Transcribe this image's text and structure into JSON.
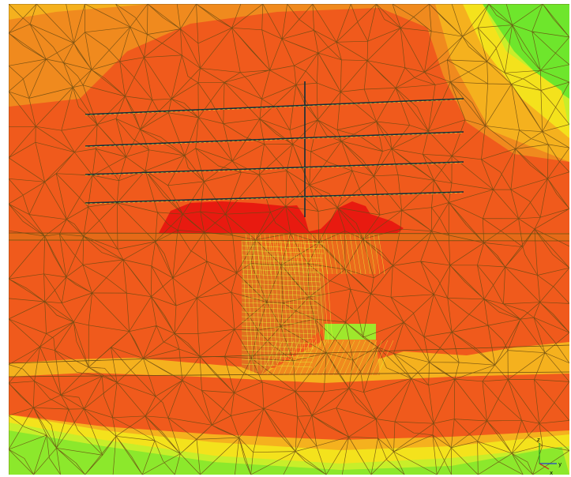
{
  "view": {
    "type": "finite-element-mesh-contour-render",
    "colors": {
      "red": "#e81a10",
      "orange_red": "#f05a1c",
      "orange": "#f08a1e",
      "amber": "#f5b11e",
      "yellow": "#f4e21c",
      "yellow_green": "#c8ee2a",
      "green": "#6ee62c",
      "mesh_edge": "#6a4a12",
      "mesh_highlight": "#e6ff3a",
      "grid_line": "#10303a",
      "shadow_wall": "#e07020"
    }
  },
  "axes_triad": {
    "x_label": "x",
    "y_label": "y",
    "z_label": "z",
    "x_color": "#d02020",
    "y_color": "#2040d0",
    "z_color": "#20a020"
  }
}
